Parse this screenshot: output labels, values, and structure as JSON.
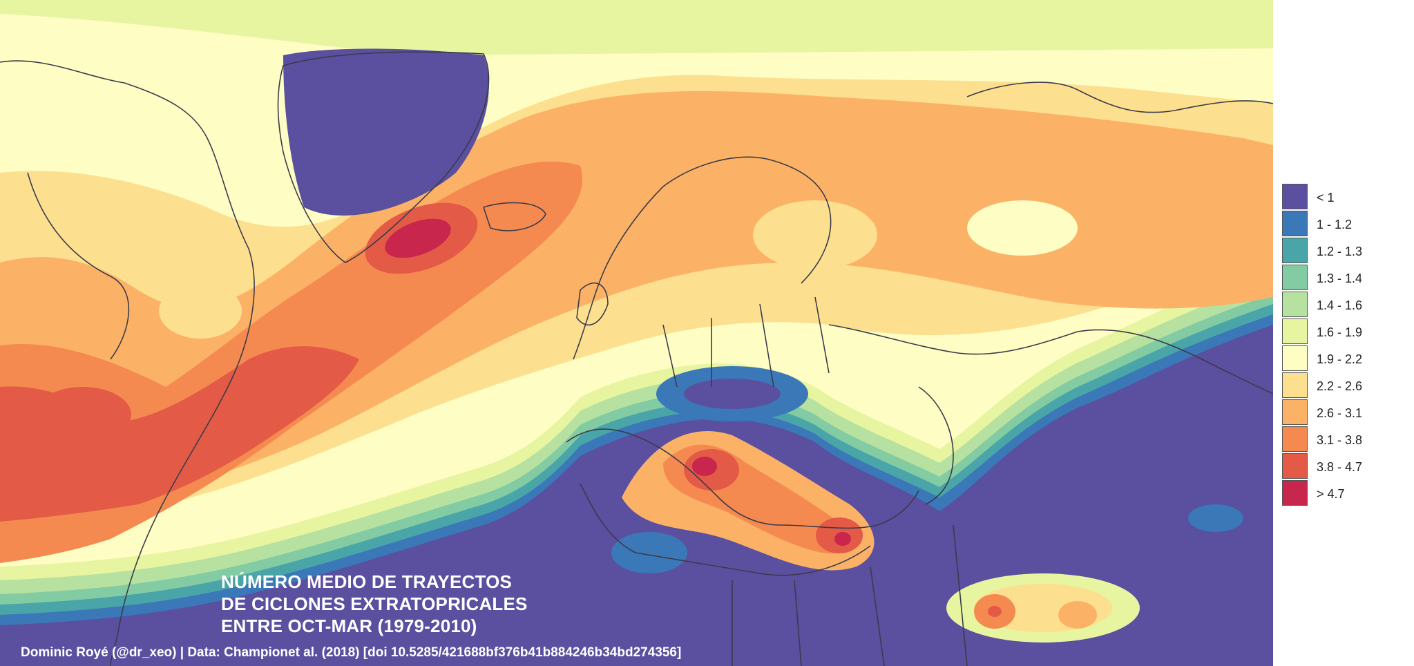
{
  "map": {
    "title_lines": [
      "NÚMERO MEDIO DE TRAYECTOS",
      "DE CICLONES EXTRATOPRICALES",
      "ENTRE OCT-MAR (1979-2010)"
    ],
    "credit": "Dominic Royé (@dr_xeo) | Data: Championet al. (2018) [doi 10.5285/421688bf376b41b884246b34bd274356]"
  },
  "legend": {
    "items": [
      {
        "label": "< 1",
        "color": "#5b4fa0"
      },
      {
        "label": "1 - 1.2",
        "color": "#3a78b8"
      },
      {
        "label": "1.2 - 1.3",
        "color": "#4aa5a8"
      },
      {
        "label": "1.3 - 1.4",
        "color": "#82cba3"
      },
      {
        "label": "1.4 - 1.6",
        "color": "#b6e1a0"
      },
      {
        "label": "1.6 - 1.9",
        "color": "#e7f4a0"
      },
      {
        "label": "1.9 - 2.2",
        "color": "#fdfdc4"
      },
      {
        "label": "2.2 - 2.6",
        "color": "#fde08f"
      },
      {
        "label": "2.6 - 3.1",
        "color": "#fbb266"
      },
      {
        "label": "3.1 - 3.8",
        "color": "#f58a50"
      },
      {
        "label": "3.8 - 4.7",
        "color": "#e35a47"
      },
      {
        "label": "> 4.7",
        "color": "#c9264d"
      }
    ]
  }
}
